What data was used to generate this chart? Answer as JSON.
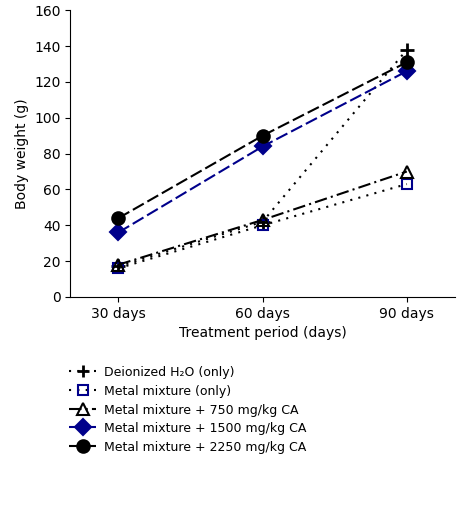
{
  "x_values": [
    30,
    60,
    90
  ],
  "x_labels": [
    "30 days",
    "60 days",
    "90 days"
  ],
  "xlabel": "Treatment period (days)",
  "ylabel": "Body weight (g)",
  "ylim": [
    0,
    160
  ],
  "yticks": [
    0,
    20,
    40,
    60,
    80,
    100,
    120,
    140,
    160
  ],
  "series": [
    {
      "label": "Deionized H₂O (only)",
      "y": [
        17,
        42,
        138
      ],
      "color": "#000000",
      "linestyle": "dotted",
      "marker": "+",
      "markerfacecolor": "#000000",
      "markeredgecolor": "#000000",
      "markersize": 10,
      "linewidth": 1.5,
      "markeredgewidth": 2.0
    },
    {
      "label": "Metal mixture (only)",
      "y": [
        16,
        40,
        63
      ],
      "color": "#000000",
      "linestyle": "dotted",
      "marker": "s",
      "markerfacecolor": "none",
      "markeredgecolor": "#00008B",
      "markersize": 7,
      "linewidth": 1.5,
      "markeredgewidth": 1.5
    },
    {
      "label": "Metal mixture + 750 mg/kg CA",
      "y": [
        18,
        43,
        70
      ],
      "color": "#000000",
      "linestyle": "dashdot",
      "marker": "^",
      "markerfacecolor": "none",
      "markeredgecolor": "#000000",
      "markersize": 8,
      "linewidth": 1.5,
      "markeredgewidth": 1.5
    },
    {
      "label": "Metal mixture + 1500 mg/kg CA",
      "y": [
        36,
        84,
        126
      ],
      "color": "#00008B",
      "linestyle": "dashed",
      "marker": "D",
      "markerfacecolor": "#00008B",
      "markeredgecolor": "#00008B",
      "markersize": 8,
      "linewidth": 1.5,
      "markeredgewidth": 1.5
    },
    {
      "label": "Metal mixture + 2250 mg/kg CA",
      "y": [
        44,
        90,
        131
      ],
      "color": "#000000",
      "linestyle": "dashed",
      "marker": "o",
      "markerfacecolor": "#000000",
      "markeredgecolor": "#000000",
      "markersize": 9,
      "linewidth": 1.5,
      "markeredgewidth": 1.5
    }
  ],
  "legend_labels": [
    "Deionized H₂O (only)",
    "Metal mixture (only)",
    "Metal mixture + 750 mg/kg CA",
    "Metal mixture + 1500 mg/kg CA",
    "Metal mixture + 2250 mg/kg CA"
  ],
  "background_color": "#ffffff"
}
